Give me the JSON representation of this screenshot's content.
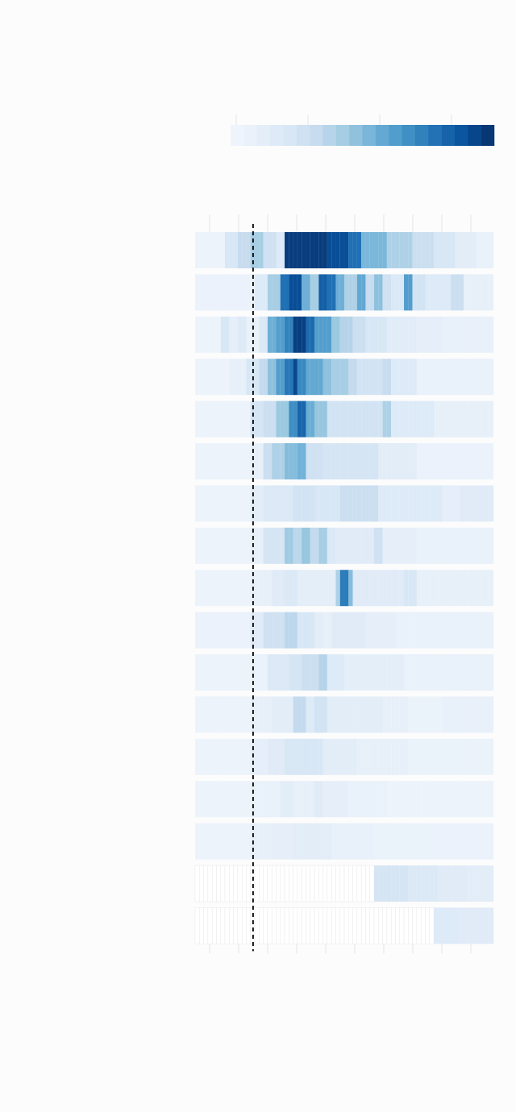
{
  "chart_data": {
    "type": "heatmap",
    "title": "",
    "subtitle": "",
    "xlabel": "",
    "ylabel": "",
    "grid": true,
    "legend_placement": "top-right",
    "colors": {
      "scale": [
        "#f1f6fd",
        "#e6eff9",
        "#d8e7f5",
        "#c6dbef",
        "#9ecae1",
        "#6baed6",
        "#4292c6",
        "#2171b5",
        "#08519c",
        "#08306b"
      ],
      "missing": "#ffffff",
      "grid": "#e3e3e3",
      "reference_line": "#000000"
    },
    "legend": {
      "range": [
        0,
        1
      ],
      "steps": 20
    },
    "x": {
      "columns": 70,
      "tick_every": 7,
      "reference_column": 13
    },
    "rows": [
      {
        "missing_until": 0,
        "segments": [
          [
            0,
            7,
            0.05
          ],
          [
            7,
            10,
            0.22
          ],
          [
            10,
            13,
            0.32
          ],
          [
            13,
            16,
            0.42
          ],
          [
            16,
            19,
            0.28
          ],
          [
            19,
            21,
            0.18
          ],
          [
            21,
            31,
            0.96
          ],
          [
            31,
            36,
            0.9
          ],
          [
            36,
            39,
            0.78
          ],
          [
            39,
            45,
            0.52
          ],
          [
            45,
            51,
            0.4
          ],
          [
            51,
            56,
            0.3
          ],
          [
            56,
            61,
            0.22
          ],
          [
            61,
            66,
            0.14
          ],
          [
            66,
            70,
            0.08
          ]
        ]
      },
      {
        "missing_until": 0,
        "segments": [
          [
            0,
            14,
            0.06
          ],
          [
            14,
            17,
            0.18
          ],
          [
            17,
            20,
            0.42
          ],
          [
            20,
            22,
            0.78
          ],
          [
            22,
            25,
            0.9
          ],
          [
            25,
            27,
            0.55
          ],
          [
            27,
            29,
            0.42
          ],
          [
            29,
            31,
            0.84
          ],
          [
            31,
            33,
            0.78
          ],
          [
            33,
            35,
            0.55
          ],
          [
            35,
            38,
            0.4
          ],
          [
            38,
            40,
            0.58
          ],
          [
            40,
            42,
            0.32
          ],
          [
            42,
            44,
            0.48
          ],
          [
            44,
            46,
            0.28
          ],
          [
            46,
            49,
            0.2
          ],
          [
            49,
            51,
            0.62
          ],
          [
            51,
            54,
            0.26
          ],
          [
            54,
            60,
            0.18
          ],
          [
            60,
            63,
            0.3
          ],
          [
            63,
            70,
            0.1
          ]
        ]
      },
      {
        "missing_until": 0,
        "segments": [
          [
            0,
            6,
            0.05
          ],
          [
            6,
            8,
            0.22
          ],
          [
            8,
            10,
            0.12
          ],
          [
            10,
            12,
            0.18
          ],
          [
            12,
            15,
            0.08
          ],
          [
            15,
            17,
            0.2
          ],
          [
            17,
            19,
            0.55
          ],
          [
            19,
            21,
            0.62
          ],
          [
            21,
            23,
            0.72
          ],
          [
            23,
            26,
            0.95
          ],
          [
            26,
            28,
            0.8
          ],
          [
            28,
            32,
            0.62
          ],
          [
            32,
            34,
            0.45
          ],
          [
            34,
            37,
            0.38
          ],
          [
            37,
            40,
            0.3
          ],
          [
            40,
            45,
            0.22
          ],
          [
            45,
            52,
            0.15
          ],
          [
            52,
            58,
            0.12
          ],
          [
            58,
            70,
            0.09
          ]
        ]
      },
      {
        "missing_until": 0,
        "segments": [
          [
            0,
            8,
            0.05
          ],
          [
            8,
            12,
            0.1
          ],
          [
            12,
            15,
            0.22
          ],
          [
            15,
            17,
            0.34
          ],
          [
            17,
            19,
            0.48
          ],
          [
            19,
            21,
            0.62
          ],
          [
            21,
            23,
            0.76
          ],
          [
            23,
            24,
            0.92
          ],
          [
            24,
            26,
            0.7
          ],
          [
            26,
            30,
            0.58
          ],
          [
            30,
            32,
            0.48
          ],
          [
            32,
            36,
            0.42
          ],
          [
            36,
            38,
            0.34
          ],
          [
            38,
            44,
            0.26
          ],
          [
            44,
            46,
            0.32
          ],
          [
            46,
            52,
            0.18
          ],
          [
            52,
            70,
            0.08
          ]
        ]
      },
      {
        "missing_until": 0,
        "segments": [
          [
            0,
            13,
            0.05
          ],
          [
            13,
            16,
            0.24
          ],
          [
            16,
            19,
            0.3
          ],
          [
            19,
            22,
            0.45
          ],
          [
            22,
            24,
            0.68
          ],
          [
            24,
            26,
            0.82
          ],
          [
            26,
            28,
            0.56
          ],
          [
            28,
            31,
            0.46
          ],
          [
            31,
            44,
            0.26
          ],
          [
            44,
            46,
            0.4
          ],
          [
            46,
            56,
            0.18
          ],
          [
            56,
            70,
            0.1
          ]
        ]
      },
      {
        "missing_until": 0,
        "segments": [
          [
            0,
            13,
            0.05
          ],
          [
            13,
            16,
            0.1
          ],
          [
            16,
            18,
            0.3
          ],
          [
            18,
            21,
            0.4
          ],
          [
            21,
            24,
            0.5
          ],
          [
            24,
            26,
            0.54
          ],
          [
            26,
            30,
            0.28
          ],
          [
            30,
            43,
            0.24
          ],
          [
            43,
            52,
            0.14
          ],
          [
            52,
            70,
            0.06
          ]
        ]
      },
      {
        "missing_until": 0,
        "segments": [
          [
            0,
            13,
            0.05
          ],
          [
            13,
            16,
            0.14
          ],
          [
            16,
            23,
            0.2
          ],
          [
            23,
            28,
            0.26
          ],
          [
            28,
            34,
            0.22
          ],
          [
            34,
            43,
            0.3
          ],
          [
            43,
            58,
            0.18
          ],
          [
            58,
            62,
            0.12
          ],
          [
            62,
            70,
            0.16
          ]
        ]
      },
      {
        "missing_until": 0,
        "segments": [
          [
            0,
            13,
            0.05
          ],
          [
            13,
            16,
            0.1
          ],
          [
            16,
            21,
            0.24
          ],
          [
            21,
            23,
            0.44
          ],
          [
            23,
            25,
            0.36
          ],
          [
            25,
            27,
            0.46
          ],
          [
            27,
            29,
            0.34
          ],
          [
            29,
            31,
            0.42
          ],
          [
            31,
            33,
            0.2
          ],
          [
            33,
            42,
            0.16
          ],
          [
            42,
            44,
            0.28
          ],
          [
            44,
            52,
            0.12
          ],
          [
            52,
            70,
            0.08
          ]
        ]
      },
      {
        "missing_until": 0,
        "segments": [
          [
            0,
            13,
            0.05
          ],
          [
            13,
            18,
            0.1
          ],
          [
            18,
            21,
            0.16
          ],
          [
            21,
            24,
            0.2
          ],
          [
            24,
            33,
            0.13
          ],
          [
            33,
            34,
            0.4
          ],
          [
            34,
            36,
            0.74
          ],
          [
            36,
            37,
            0.5
          ],
          [
            37,
            49,
            0.16
          ],
          [
            49,
            52,
            0.22
          ],
          [
            52,
            70,
            0.1
          ]
        ]
      },
      {
        "missing_until": 0,
        "segments": [
          [
            0,
            13,
            0.06
          ],
          [
            13,
            16,
            0.16
          ],
          [
            16,
            21,
            0.28
          ],
          [
            21,
            24,
            0.36
          ],
          [
            24,
            28,
            0.22
          ],
          [
            28,
            30,
            0.14
          ],
          [
            30,
            32,
            0.1
          ],
          [
            32,
            40,
            0.16
          ],
          [
            40,
            47,
            0.12
          ],
          [
            47,
            70,
            0.08
          ]
        ]
      },
      {
        "missing_until": 0,
        "segments": [
          [
            0,
            13,
            0.05
          ],
          [
            13,
            17,
            0.08
          ],
          [
            17,
            22,
            0.2
          ],
          [
            22,
            25,
            0.24
          ],
          [
            25,
            29,
            0.3
          ],
          [
            29,
            31,
            0.38
          ],
          [
            31,
            35,
            0.18
          ],
          [
            35,
            49,
            0.13
          ],
          [
            49,
            70,
            0.08
          ]
        ]
      },
      {
        "missing_until": 0,
        "segments": [
          [
            0,
            13,
            0.05
          ],
          [
            13,
            18,
            0.1
          ],
          [
            18,
            23,
            0.14
          ],
          [
            23,
            26,
            0.34
          ],
          [
            26,
            28,
            0.18
          ],
          [
            28,
            31,
            0.26
          ],
          [
            31,
            44,
            0.14
          ],
          [
            44,
            50,
            0.1
          ],
          [
            50,
            58,
            0.07
          ],
          [
            58,
            70,
            0.09
          ]
        ]
      },
      {
        "missing_until": 0,
        "segments": [
          [
            0,
            13,
            0.05
          ],
          [
            13,
            17,
            0.12
          ],
          [
            17,
            21,
            0.16
          ],
          [
            21,
            30,
            0.22
          ],
          [
            30,
            38,
            0.14
          ],
          [
            38,
            50,
            0.1
          ],
          [
            50,
            70,
            0.07
          ]
        ]
      },
      {
        "missing_until": 0,
        "segments": [
          [
            0,
            13,
            0.05
          ],
          [
            13,
            20,
            0.08
          ],
          [
            20,
            23,
            0.14
          ],
          [
            23,
            28,
            0.1
          ],
          [
            28,
            30,
            0.16
          ],
          [
            30,
            36,
            0.12
          ],
          [
            36,
            45,
            0.08
          ],
          [
            45,
            70,
            0.05
          ]
        ]
      },
      {
        "missing_until": 0,
        "segments": [
          [
            0,
            13,
            0.05
          ],
          [
            13,
            18,
            0.1
          ],
          [
            18,
            23,
            0.12
          ],
          [
            23,
            32,
            0.14
          ],
          [
            32,
            42,
            0.09
          ],
          [
            42,
            55,
            0.07
          ],
          [
            55,
            70,
            0.06
          ]
        ]
      },
      {
        "missing_until": 42,
        "segments": [
          [
            42,
            50,
            0.24
          ],
          [
            50,
            57,
            0.2
          ],
          [
            57,
            64,
            0.16
          ],
          [
            64,
            70,
            0.14
          ]
        ]
      },
      {
        "missing_until": 56,
        "segments": [
          [
            56,
            62,
            0.18
          ],
          [
            62,
            70,
            0.16
          ]
        ]
      }
    ]
  }
}
